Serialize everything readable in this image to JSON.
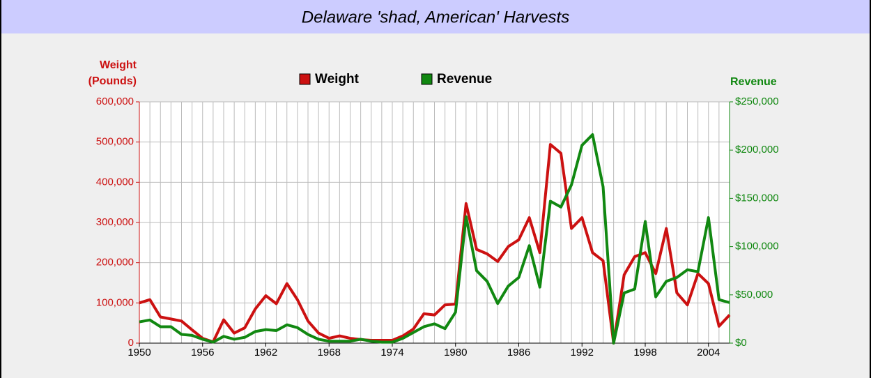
{
  "chart_data": {
    "type": "line",
    "title": "Delaware 'shad, American' Harvests",
    "ylabel": [
      "Weight",
      "(Pounds)"
    ],
    "y2label": "Revenue",
    "x": [
      1950,
      1951,
      1952,
      1953,
      1954,
      1955,
      1956,
      1957,
      1958,
      1959,
      1960,
      1961,
      1962,
      1963,
      1964,
      1965,
      1966,
      1967,
      1968,
      1969,
      1970,
      1971,
      1972,
      1973,
      1974,
      1975,
      1976,
      1977,
      1978,
      1979,
      1980,
      1981,
      1982,
      1983,
      1984,
      1985,
      1986,
      1987,
      1988,
      1989,
      1990,
      1991,
      1992,
      1993,
      1994,
      1995,
      1996,
      1997,
      1998,
      1999,
      2000,
      2001,
      2002,
      2003,
      2004,
      2005,
      2006
    ],
    "xlim": [
      1950,
      2006
    ],
    "xticks": [
      1950,
      1956,
      1962,
      1968,
      1974,
      1980,
      1986,
      1992,
      1998,
      2004
    ],
    "ylim": [
      0,
      600000
    ],
    "yticks": [
      0,
      {
        "value": 100000,
        "label": "100,000"
      },
      {
        "value": 200000,
        "label": "200,000"
      },
      {
        "value": 300000,
        "label": "300,000"
      },
      {
        "value": 400000,
        "label": "400,000"
      },
      {
        "value": 500000,
        "label": "500,000"
      },
      {
        "value": 600000,
        "label": "600,000"
      }
    ],
    "y2lim": [
      0,
      250000
    ],
    "y2ticks": [
      {
        "value": 0,
        "label": "$0"
      },
      {
        "value": 50000,
        "label": "$50,000"
      },
      {
        "value": 100000,
        "label": "$100,000"
      },
      {
        "value": 150000,
        "label": "$150,000"
      },
      {
        "value": 200000,
        "label": "$200,000"
      },
      {
        "value": 250000,
        "label": "$250,000"
      }
    ],
    "grid": true,
    "legend": "top",
    "series": [
      {
        "name": "Weight",
        "color": "#cc1111",
        "values": [
          100000,
          108000,
          65000,
          60000,
          55000,
          33000,
          12000,
          3000,
          58000,
          25000,
          38000,
          85000,
          118000,
          98000,
          148000,
          108000,
          55000,
          25000,
          12000,
          18000,
          12000,
          9000,
          7000,
          7000,
          7000,
          18000,
          35000,
          73000,
          70000,
          95000,
          97000,
          347000,
          233000,
          222000,
          203000,
          240000,
          257000,
          312000,
          225000,
          494000,
          472000,
          285000,
          312000,
          225000,
          205000,
          0,
          170000,
          215000,
          225000,
          173000,
          285000,
          125000,
          95000,
          173000,
          148000,
          42000,
          70000
        ]
      },
      {
        "name": "Revenue",
        "color": "#118811",
        "axis": "y2",
        "values": [
          22000,
          24000,
          17000,
          17000,
          9000,
          8000,
          4000,
          1000,
          7000,
          4000,
          6000,
          12000,
          14000,
          13000,
          19000,
          16000,
          9000,
          4000,
          2000,
          2000,
          2000,
          4000,
          2000,
          1000,
          1000,
          5000,
          11000,
          17000,
          20000,
          15000,
          32000,
          131000,
          75000,
          64000,
          41000,
          59000,
          68000,
          101000,
          58000,
          147000,
          141000,
          164000,
          205000,
          216000,
          162000,
          0,
          52000,
          56000,
          126000,
          48000,
          64000,
          68000,
          76000,
          74000,
          130000,
          45000,
          42000
        ]
      }
    ]
  }
}
